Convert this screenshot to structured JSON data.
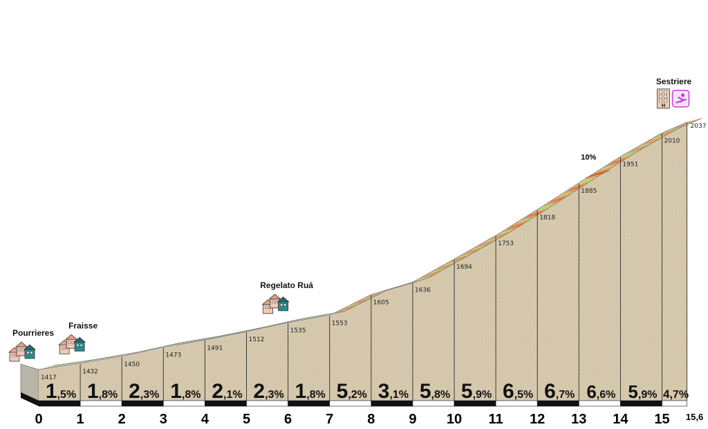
{
  "chart_data": {
    "type": "area",
    "x_km": [
      0,
      1,
      2,
      3,
      4,
      5,
      6,
      7,
      8,
      9,
      10,
      11,
      12,
      13,
      14,
      15,
      15.6
    ],
    "elevation_m": [
      1417,
      1432,
      1450,
      1473,
      1491,
      1512,
      1535,
      1553,
      1605,
      1636,
      1694,
      1753,
      1818,
      1885,
      1951,
      2010,
      2037
    ],
    "km_labels": [
      "0",
      "1",
      "2",
      "3",
      "4",
      "5",
      "6",
      "7",
      "8",
      "9",
      "10",
      "11",
      "12",
      "13",
      "14",
      "15"
    ],
    "total_km_label": "15,6",
    "elevation_labels": [
      "1417",
      "1432",
      "1450",
      "1473",
      "1491",
      "1512",
      "1535",
      "1553",
      "1605",
      "1636",
      "1694",
      "1753",
      "1818",
      "1885",
      "1951",
      "2010",
      "2037"
    ],
    "gradients": [
      {
        "int": "1",
        "dec": ",5%"
      },
      {
        "int": "1",
        "dec": ",8%"
      },
      {
        "int": "2",
        "dec": ",3%"
      },
      {
        "int": "1",
        "dec": ",8%"
      },
      {
        "int": "2",
        "dec": ",1%"
      },
      {
        "int": "2",
        "dec": ",3%"
      },
      {
        "int": "1",
        "dec": ",8%"
      },
      {
        "int": "5",
        "dec": ",2%"
      },
      {
        "int": "3",
        "dec": ",1%"
      },
      {
        "int": "5",
        "dec": ",8%"
      },
      {
        "int": "5",
        "dec": ",9%"
      },
      {
        "int": "6",
        "dec": ",5%"
      },
      {
        "int": "6",
        "dec": ",7%"
      },
      {
        "int": "6",
        "dec": ",6%"
      },
      {
        "int": "5",
        "dec": ",9%"
      },
      {
        "int": "4",
        "dec": ",7%"
      }
    ],
    "places": [
      {
        "name": "Pourrieres",
        "km": 0,
        "icon": "village-icon"
      },
      {
        "name": "Fraisse",
        "km": 1.2,
        "icon": "village-icon"
      },
      {
        "name": "Regelato Ruá",
        "km": 6.1,
        "icon": "village-icon"
      },
      {
        "name": "Sestriere",
        "km": 15.3,
        "icon": "hotel-and-ski-icon"
      }
    ],
    "max_gradient": {
      "label": "10%",
      "km": 13.2
    },
    "colors": {
      "ground": "#d8cbb0",
      "ground_light": "#e8e0cc",
      "side": "#b9b4a8",
      "stripe_green": "#cbe07a",
      "stripe_light": "#f4efe0",
      "stripe_orange": "#f5a063",
      "stripe_deep": "#ee7a3a",
      "km_black": "#111111"
    }
  }
}
